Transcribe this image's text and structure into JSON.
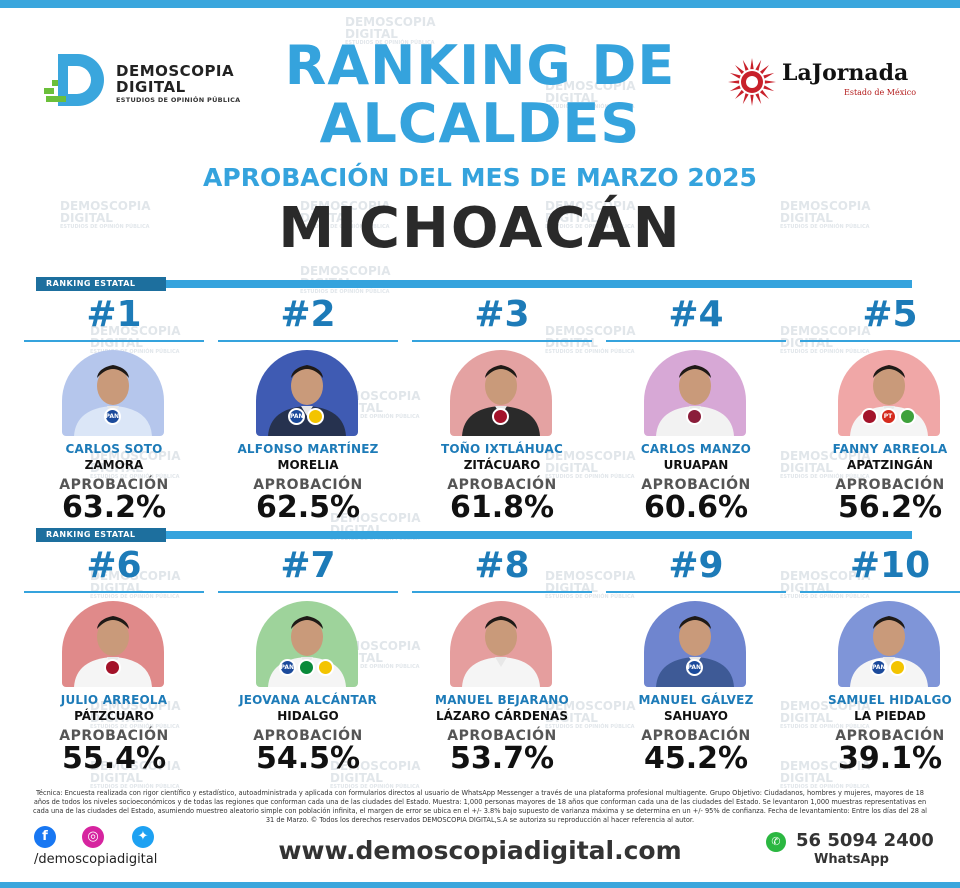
{
  "header": {
    "brand_line1": "DEMOSCOPIA",
    "brand_line2": "DIGITAL",
    "brand_tagline": "ESTUDIOS DE OPINIÓN PÚBLICA",
    "title_line1": "RANKING DE",
    "title_line2": "ALCALDES",
    "subtitle": "APROBACIÓN DEL MES DE MARZO 2025",
    "state": "MICHOACÁN",
    "partner_name": "LaJornada",
    "partner_sub": "Estado de México"
  },
  "section_label": "RANKING ESTATAL",
  "approval_label": "APROBACIÓN",
  "watermark_word1": "DEMOSCOPIA",
  "watermark_word2": "DIGITAL",
  "colors": {
    "accent_blue": "#35a3dd",
    "dark_blue": "#1d6f9e",
    "party_pan": "#1b4a9b",
    "party_morena": "#a3132a",
    "party_pt": "#d52b1e",
    "party_pvem": "#3ea13b",
    "party_prd": "#f3c400"
  },
  "mayors": [
    {
      "rank": "#1",
      "name": "CARLOS SOTO",
      "city": "ZAMORA",
      "approval": "63.2%",
      "approval_value": 63.2,
      "bg": "#b5c6ec",
      "shirt": "#dbe6f7",
      "badges": [
        "PAN"
      ]
    },
    {
      "rank": "#2",
      "name": "ALFONSO MARTÍNEZ",
      "city": "MORELIA",
      "approval": "62.5%",
      "approval_value": 62.5,
      "bg": "#3f5bb3",
      "shirt": "#26324f",
      "badges": [
        "PAN",
        "PRD"
      ]
    },
    {
      "rank": "#3",
      "name": "TOÑO IXTLÁHUAC",
      "city": "ZITÁCUARO",
      "approval": "61.8%",
      "approval_value": 61.8,
      "bg": "#e4a2a2",
      "shirt": "#2a2a2a",
      "badges": [
        "MORENA"
      ]
    },
    {
      "rank": "#4",
      "name": "CARLOS MANZO",
      "city": "URUAPAN",
      "approval": "60.6%",
      "approval_value": 60.6,
      "bg": "#d7a8d6",
      "shirt": "#f2f2f2",
      "badges": [
        "MOV"
      ]
    },
    {
      "rank": "#5",
      "name": "FANNY ARREOLA",
      "city": "APATZINGÁN",
      "approval": "56.2%",
      "approval_value": 56.2,
      "bg": "#f0a7a7",
      "shirt": "#f5f5f5",
      "badges": [
        "MORENA",
        "PT",
        "PVEM"
      ]
    },
    {
      "rank": "#6",
      "name": "JULIO ARREOLA",
      "city": "PÁTZCUARO",
      "approval": "55.4%",
      "approval_value": 55.4,
      "bg": "#e08a8a",
      "shirt": "#f5f5f5",
      "badges": [
        "MORENA"
      ]
    },
    {
      "rank": "#7",
      "name": "JEOVANA ALCÁNTAR",
      "city": "HIDALGO",
      "approval": "54.5%",
      "approval_value": 54.5,
      "bg": "#9ed39b",
      "shirt": "#f5f5f5",
      "badges": [
        "PAN",
        "PRI",
        "PRD"
      ]
    },
    {
      "rank": "#8",
      "name": "MANUEL BEJARANO",
      "city": "LÁZARO CÁRDENAS",
      "approval": "53.7%",
      "approval_value": 53.7,
      "bg": "#e59e9e",
      "shirt": "#f5f5f5",
      "badges": []
    },
    {
      "rank": "#9",
      "name": "MANUEL GÁLVEZ",
      "city": "SAHUAYO",
      "approval": "45.2%",
      "approval_value": 45.2,
      "bg": "#6f85cf",
      "shirt": "#3e5a96",
      "badges": [
        "PAN"
      ]
    },
    {
      "rank": "#10",
      "name": "SAMUEL HIDALGO",
      "city": "LA PIEDAD",
      "approval": "39.1%",
      "approval_value": 39.1,
      "bg": "#7f95d8",
      "shirt": "#f5f5f5",
      "badges": [
        "PAN",
        "PRD"
      ]
    }
  ],
  "footer": {
    "fineprint": "Técnica: Encuesta realizada con rigor científico y estadístico, autoadministrada y aplicada con formularios directos al usuario de WhatsApp Messenger a través de una plataforma profesional multiagente. Grupo Objetivo: Ciudadanos, hombres y mujeres, mayores de 18 años de todos los niveles socioeconómicos y de todas las regiones que conforman cada una de las ciudades del Estado. Muestra: 1,000 personas mayores de 18 años que conforman cada una de las ciudades del Estado. Se levantaron 1,000 muestras representativas en cada una de las ciudades del Estado, asumiendo muestreo aleatorio simple con población infinita, el margen de error se ubica en el +/- 3.8% bajo supuesto de varianza máxima y se determina en un +/- 95% de confianza. Fecha de levantamiento: Entre los días del 28 al 31 de Marzo. © Todos los derechos reservados DEMOSCOPIA DIGITAL,S.A se autoriza su reproducción al hacer referencia al autor.",
    "handle": "/demoscopiadigital",
    "website": "www.demoscopiadigital.com",
    "phone": "56 5094 2400",
    "phone_label": "WhatsApp"
  }
}
